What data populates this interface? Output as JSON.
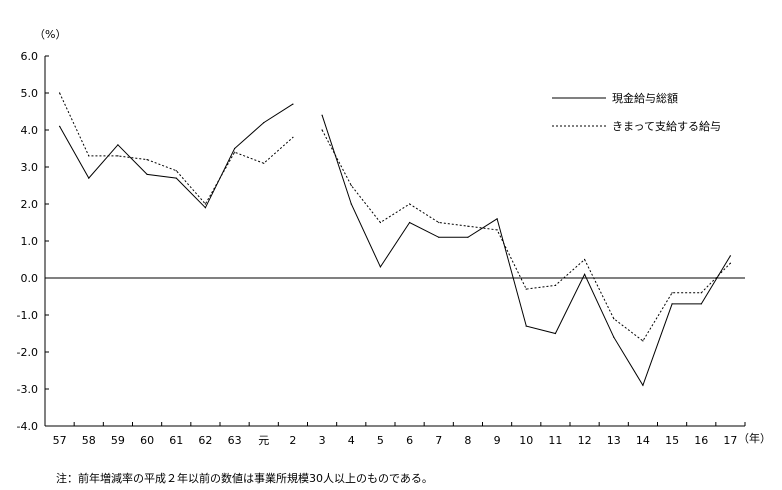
{
  "chart_data": {
    "type": "line",
    "title": "",
    "ylabel": "（%）",
    "xlabel": "（年）",
    "ylim": [
      -4.0,
      6.0
    ],
    "y_ticks": [
      "6.0",
      "5.0",
      "4.0",
      "3.0",
      "2.0",
      "1.0",
      "0.0",
      "-1.0",
      "-2.0",
      "-3.0",
      "-4.0"
    ],
    "categories": [
      "57",
      "58",
      "59",
      "60",
      "61",
      "62",
      "63",
      "元",
      "2",
      "3",
      "4",
      "5",
      "6",
      "7",
      "8",
      "9",
      "10",
      "11",
      "12",
      "13",
      "14",
      "15",
      "16",
      "17"
    ],
    "grid": false,
    "legend_position": "top-right",
    "series": [
      {
        "name": "現金給与総額",
        "style": "solid",
        "color": "#000000",
        "values": [
          4.1,
          2.7,
          3.6,
          2.8,
          2.7,
          1.9,
          3.5,
          4.2,
          4.7,
          4.4,
          2.0,
          0.3,
          1.5,
          1.1,
          1.1,
          1.6,
          -1.3,
          -1.5,
          0.1,
          -1.6,
          -2.9,
          -0.7,
          -0.7,
          0.6
        ]
      },
      {
        "name": "きまって支給する給与",
        "style": "dotted",
        "color": "#000000",
        "values": [
          5.0,
          3.3,
          3.3,
          3.2,
          2.9,
          2.0,
          3.4,
          3.1,
          3.8,
          4.0,
          2.5,
          1.5,
          2.0,
          1.5,
          1.4,
          1.3,
          -0.3,
          -0.2,
          0.5,
          -1.1,
          -1.7,
          -0.4,
          -0.4,
          0.4
        ]
      }
    ],
    "break_after_index": 8
  },
  "note": "注：前年増減率の平成２年以前の数値は事業所規模30人以上のものである。"
}
